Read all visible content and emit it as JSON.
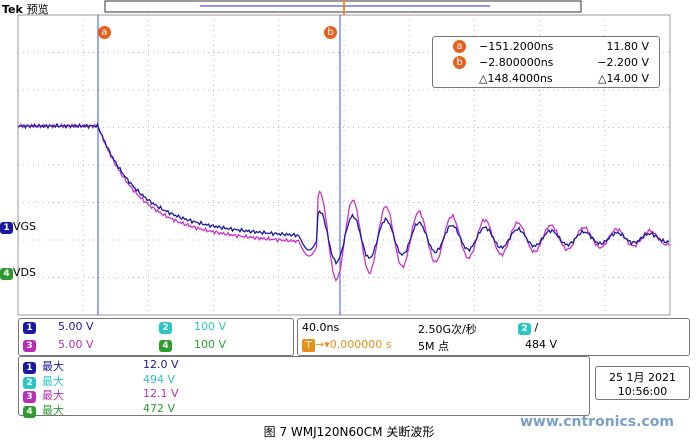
{
  "header": {
    "brand": "Tek",
    "mode": "预览"
  },
  "markers": [
    "a",
    "b"
  ],
  "cursor_readout": [
    {
      "marker": "a",
      "time": "−151.2000ns",
      "value": "11.80 V"
    },
    {
      "marker": "b",
      "time": "−2.800000ns",
      "value": "−2.200 V"
    },
    {
      "time": "△148.4000ns",
      "value": "△14.00 V"
    }
  ],
  "channel_labels": [
    {
      "number": "1",
      "label": "VGS"
    },
    {
      "number": "4",
      "label": "VDS"
    }
  ],
  "channels": [
    {
      "number": "1",
      "scale": "5.00 V"
    },
    {
      "number": "2",
      "scale": "100 V"
    },
    {
      "number": "3",
      "scale": "5.00 V"
    },
    {
      "number": "4",
      "scale": "100 V"
    }
  ],
  "timebase": {
    "scale": "40.0ns",
    "trigger_delay": "0.000000 s",
    "sample_rate": "2.50G次/秒",
    "record_length": "5M 点",
    "trigger_channel": "2",
    "trigger_slope": "/",
    "trigger_level": "484 V"
  },
  "measurements": [
    {
      "channel": "1",
      "label": "最大",
      "value": "12.0 V"
    },
    {
      "channel": "2",
      "label": "最大",
      "value": "494 V"
    },
    {
      "channel": "3",
      "label": "最大",
      "value": "12.1 V"
    },
    {
      "channel": "4",
      "label": "最大",
      "value": "472 V"
    }
  ],
  "datetime": {
    "date": "25 1月 2021",
    "time": "10:56:00"
  },
  "caption": "图 7 WMJ120N60CM  关断波形",
  "watermark": "www.cntronics.com"
}
